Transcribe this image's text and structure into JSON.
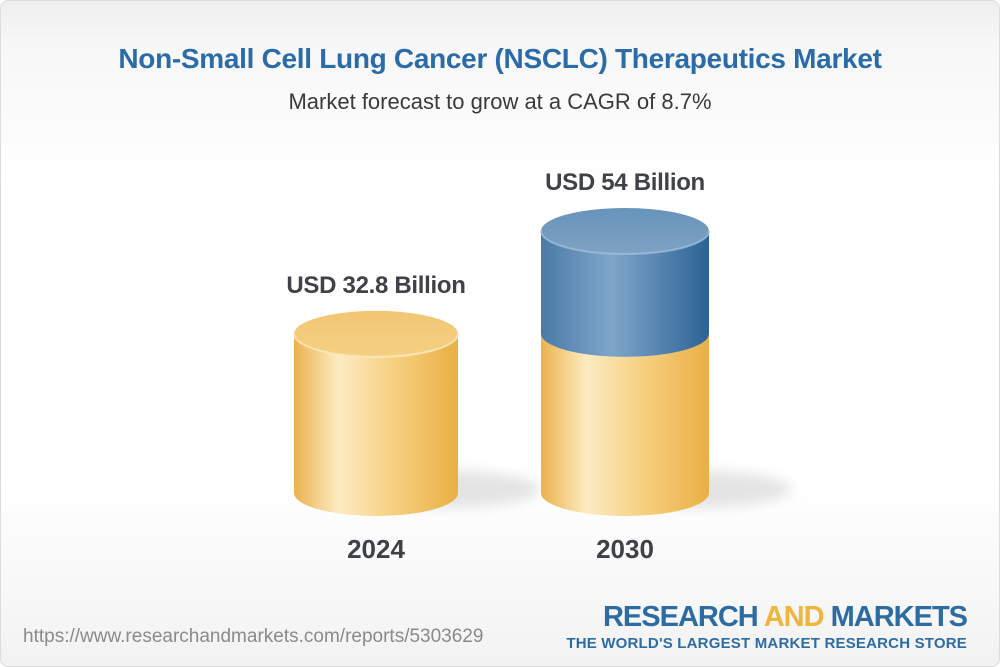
{
  "header": {
    "title": "Non-Small Cell Lung Cancer (NSCLC) Therapeutics Market",
    "subtitle": "Market forecast to grow at a CAGR of 8.7%"
  },
  "chart_data": {
    "type": "bar",
    "subtype": "3d-cylinder-stacked",
    "title": "Non-Small Cell Lung Cancer (NSCLC) Therapeutics Market",
    "subtitle": "Market forecast to grow at a CAGR of 8.7%",
    "cagr_percent": 8.7,
    "unit": "USD Billion",
    "categories": [
      "2024",
      "2030"
    ],
    "values": [
      32.8,
      54
    ],
    "value_labels": [
      "USD 32.8 Billion",
      "USD 54 Billion"
    ],
    "ylim": [
      0,
      54
    ],
    "legend": "none",
    "grid": "off",
    "colors": {
      "base_segment": "#F2C467",
      "growth_segment": "#5585B0",
      "label_text": "#3F4246",
      "title_text": "#2B6CA8"
    }
  },
  "footer": {
    "url": "https://www.researchandmarkets.com/reports/5303629",
    "logo": {
      "research": "RESEARCH",
      "and": "AND",
      "markets": "MARKETS",
      "tagline": "THE WORLD'S LARGEST MARKET RESEARCH STORE"
    }
  }
}
